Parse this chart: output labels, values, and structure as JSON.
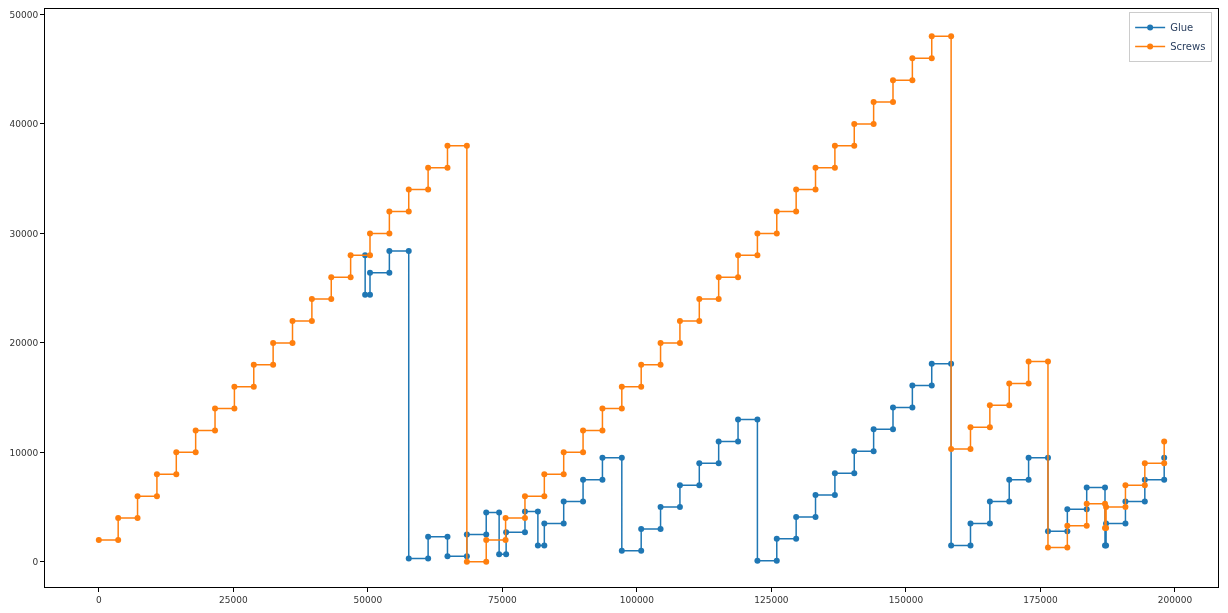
{
  "chart_data": {
    "type": "line",
    "xlim": [
      -10000,
      208000
    ],
    "ylim": [
      -2300,
      50500
    ],
    "xticks": [
      0,
      25000,
      50000,
      75000,
      100000,
      125000,
      150000,
      175000,
      200000
    ],
    "yticks": [
      0,
      10000,
      20000,
      30000,
      40000,
      50000
    ],
    "legend": "top right",
    "marker": "circle",
    "line_style": "solid",
    "series": [
      {
        "name": "Glue",
        "color": "#1f77b4",
        "x": [
          49500,
          49500,
          50400,
          50400,
          54000,
          54000,
          57600,
          57600,
          61200,
          61200,
          64800,
          64800,
          68400,
          68400,
          72000,
          72000,
          74400,
          74400,
          75700,
          75700,
          79200,
          79200,
          81600,
          81600,
          82800,
          82800,
          86400,
          86400,
          90000,
          90000,
          93600,
          93600,
          97200,
          97200,
          100800,
          100800,
          104400,
          104400,
          108000,
          108000,
          111600,
          111600,
          115200,
          115200,
          118800,
          118800,
          122400,
          122400,
          126000,
          126000,
          129600,
          129600,
          133200,
          133200,
          136800,
          136800,
          140400,
          140400,
          144000,
          144000,
          147600,
          147600,
          151200,
          151200,
          154800,
          154800,
          158400,
          158400,
          162000,
          162000,
          165600,
          165600,
          169200,
          169200,
          172800,
          172800,
          176400,
          176400,
          180000,
          180000,
          183600,
          183600,
          187000,
          187000,
          187200,
          187200,
          190800,
          190800,
          194400,
          194400,
          198000,
          198000
        ],
        "values": [
          28000,
          24400,
          24400,
          26400,
          26400,
          28400,
          28400,
          300,
          300,
          2300,
          2300,
          500,
          500,
          2500,
          2500,
          4500,
          4500,
          700,
          700,
          2700,
          2700,
          4600,
          4600,
          1500,
          1500,
          3500,
          3500,
          5500,
          5500,
          7500,
          7500,
          9500,
          9500,
          1000,
          1000,
          3000,
          3000,
          5000,
          5000,
          7000,
          7000,
          9000,
          9000,
          11000,
          11000,
          13000,
          13000,
          100,
          100,
          2100,
          2100,
          4100,
          4100,
          6100,
          6100,
          8100,
          8100,
          10100,
          10100,
          12100,
          12100,
          14100,
          14100,
          16100,
          16100,
          18100,
          18100,
          1500,
          1500,
          3500,
          3500,
          5500,
          5500,
          7500,
          7500,
          9500,
          9500,
          2800,
          2800,
          4800,
          4800,
          6800,
          6800,
          1500,
          1500,
          3500,
          3500,
          5500,
          5500,
          7500,
          7500,
          9500
        ]
      },
      {
        "name": "Screws",
        "color": "#ff7f0e",
        "x": [
          0,
          3600,
          3600,
          7200,
          7200,
          10800,
          10800,
          14400,
          14400,
          18000,
          18000,
          21600,
          21600,
          25200,
          25200,
          28800,
          28800,
          32400,
          32400,
          36000,
          36000,
          39600,
          39600,
          43200,
          43200,
          46800,
          46800,
          50400,
          50400,
          54000,
          54000,
          57600,
          57600,
          61200,
          61200,
          64800,
          64800,
          68400,
          68400,
          72000,
          72000,
          75600,
          75600,
          79200,
          79200,
          82800,
          82800,
          86400,
          86400,
          90000,
          90000,
          93600,
          93600,
          97200,
          97200,
          100800,
          100800,
          104400,
          104400,
          108000,
          108000,
          111600,
          111600,
          115200,
          115200,
          118800,
          118800,
          122400,
          122400,
          126000,
          126000,
          129600,
          129600,
          133200,
          133200,
          136800,
          136800,
          140400,
          140400,
          144000,
          144000,
          147600,
          147600,
          151200,
          151200,
          154800,
          154800,
          158400,
          158400,
          162000,
          162000,
          165600,
          165600,
          169200,
          169200,
          172800,
          172800,
          176400,
          176400,
          180000,
          180000,
          183600,
          183600,
          187000,
          187000,
          187200,
          187200,
          190800,
          190800,
          194400,
          194400,
          198000,
          198000
        ],
        "values": [
          2000,
          2000,
          4000,
          4000,
          6000,
          6000,
          8000,
          8000,
          10000,
          10000,
          12000,
          12000,
          14000,
          14000,
          16000,
          16000,
          18000,
          18000,
          20000,
          20000,
          22000,
          22000,
          24000,
          24000,
          26000,
          26000,
          28000,
          28000,
          30000,
          30000,
          32000,
          32000,
          34000,
          34000,
          36000,
          36000,
          38000,
          38000,
          0,
          0,
          2000,
          2000,
          4000,
          4000,
          6000,
          6000,
          8000,
          8000,
          10000,
          10000,
          12000,
          12000,
          14000,
          14000,
          16000,
          16000,
          18000,
          18000,
          20000,
          20000,
          22000,
          22000,
          24000,
          24000,
          26000,
          26000,
          28000,
          28000,
          30000,
          30000,
          32000,
          32000,
          34000,
          34000,
          36000,
          36000,
          38000,
          38000,
          40000,
          40000,
          42000,
          42000,
          44000,
          44000,
          46000,
          46000,
          48000,
          48000,
          10300,
          10300,
          12300,
          12300,
          14300,
          14300,
          16300,
          16300,
          18300,
          18300,
          1300,
          1300,
          3300,
          3300,
          5300,
          5300,
          3100,
          3100,
          5000,
          5000,
          7000,
          7000,
          9000,
          9000,
          11000
        ]
      }
    ]
  }
}
